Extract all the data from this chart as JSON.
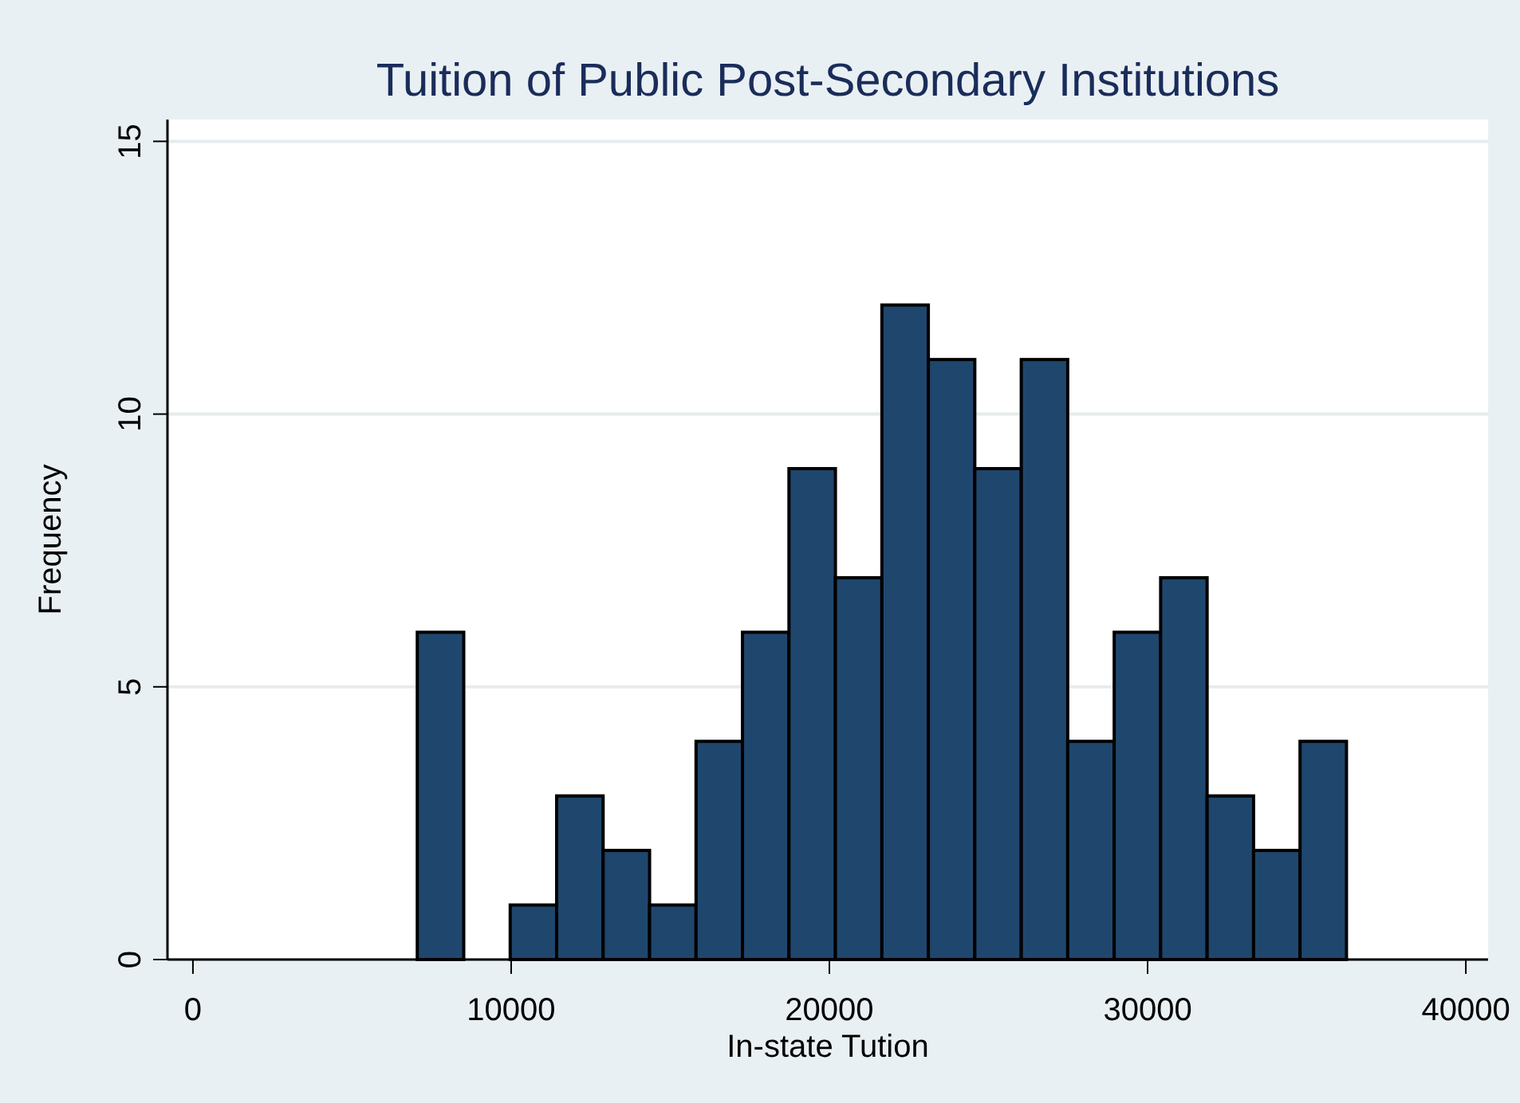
{
  "chart_data": {
    "type": "histogram",
    "title": "Tuition of Public Post-Secondary Institutions",
    "xlabel": "In-state Tution",
    "ylabel": "Frequency",
    "bins": [
      7050,
      8510,
      9970,
      11430,
      12890,
      14350,
      15810,
      17270,
      18730,
      20190,
      21650,
      23110,
      24570,
      26030,
      27490,
      28950,
      30410,
      31870,
      33330,
      34790,
      36250
    ],
    "values": [
      6,
      0,
      1,
      3,
      2,
      1,
      4,
      6,
      9,
      7,
      12,
      11,
      9,
      11,
      4,
      6,
      7,
      3,
      2,
      4
    ],
    "color": "#1f476e",
    "xlim": [
      -800,
      40700
    ],
    "ylim": [
      0,
      15.4
    ],
    "xticks": [
      0,
      10000,
      20000,
      30000,
      40000
    ],
    "yticks": [
      0,
      5,
      10,
      15
    ],
    "grid": "y"
  }
}
